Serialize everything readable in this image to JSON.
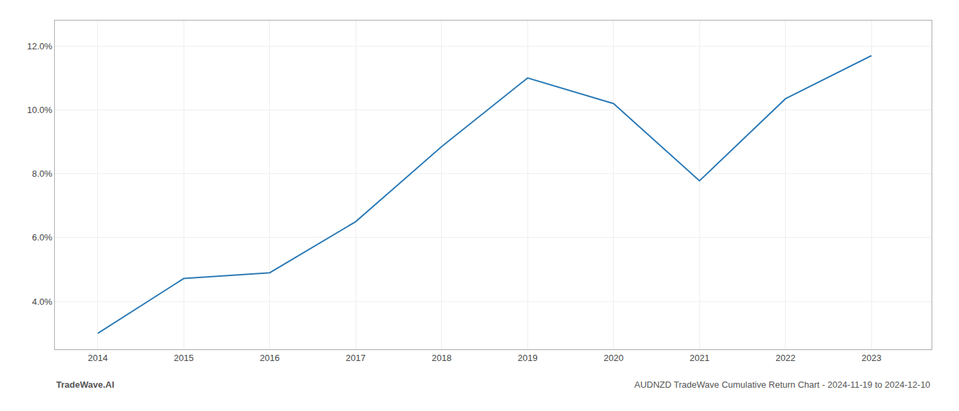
{
  "chart_data": {
    "type": "line",
    "x": [
      2014,
      2015,
      2016,
      2017,
      2018,
      2019,
      2020,
      2021,
      2022,
      2023
    ],
    "values": [
      3.0,
      4.72,
      4.9,
      6.5,
      8.85,
      11.0,
      10.2,
      7.78,
      10.35,
      11.7
    ],
    "color": "#2878b5",
    "xlim": [
      2013.5,
      2023.7
    ],
    "ylim": [
      2.5,
      12.8
    ],
    "xticks": [
      2014,
      2015,
      2016,
      2017,
      2018,
      2019,
      2020,
      2021,
      2022,
      2023
    ],
    "yticks": [
      {
        "value": 4.0,
        "label": "4.0%"
      },
      {
        "value": 6.0,
        "label": "6.0%"
      },
      {
        "value": 8.0,
        "label": "8.0%"
      },
      {
        "value": 10.0,
        "label": "10.0%"
      },
      {
        "value": 12.0,
        "label": "12.0%"
      }
    ],
    "grid": true,
    "annotations": [
      "TradeWave.AI",
      "AUDNZD TradeWave Cumulative Return Chart - 2024-11-19 to 2024-12-10"
    ]
  }
}
